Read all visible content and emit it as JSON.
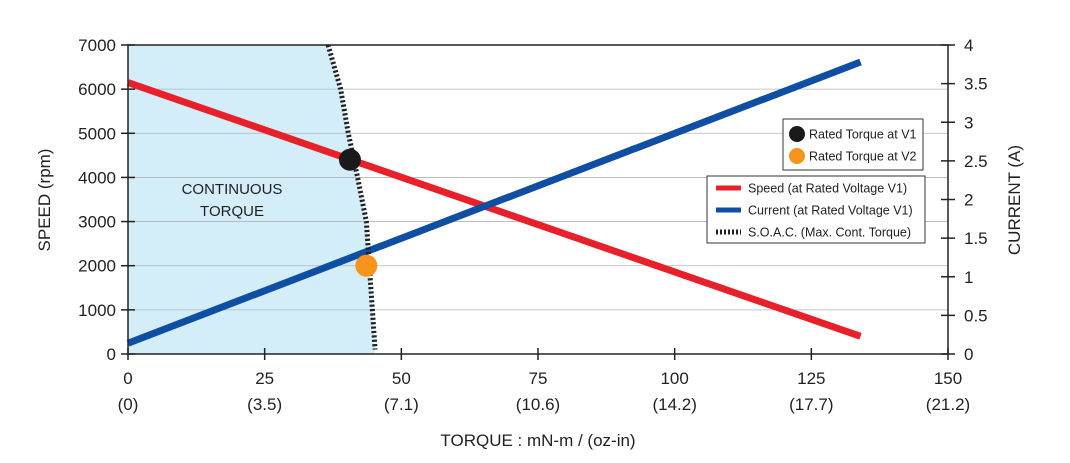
{
  "chart_data": {
    "type": "line",
    "xlabel": "TORQUE : mN-m / (oz-in)",
    "ylabel_left": "SPEED (rpm)",
    "ylabel_right": "CURRENT (A)",
    "xlim": [
      0,
      150
    ],
    "ylim_left": [
      0,
      7000
    ],
    "ylim_right": [
      0,
      4
    ],
    "x_ticks": [
      0,
      25,
      50,
      75,
      100,
      125,
      150
    ],
    "x_ticks_secondary": [
      "(0)",
      "(3.5)",
      "(7.1)",
      "(10.6)",
      "(14.2)",
      "(17.7)",
      "(21.2)"
    ],
    "y_ticks_left": [
      0,
      1000,
      2000,
      3000,
      4000,
      5000,
      6000,
      7000
    ],
    "y_ticks_right": [
      "0",
      "0.5",
      "1",
      "1.5",
      "2",
      "2.5",
      "3",
      "3.5",
      "4"
    ],
    "grid": true,
    "region_label": [
      "CONTINUOUS",
      "TORQUE"
    ],
    "series": [
      {
        "name": "Speed (at Rated Voltage V1)",
        "axis": "left",
        "color": "#e8202a",
        "x": [
          0,
          134
        ],
        "y": [
          6150,
          400
        ]
      },
      {
        "name": "Current (at Rated Voltage V1)",
        "axis": "right",
        "color": "#0f4fa3",
        "x": [
          0,
          134
        ],
        "y": [
          0.14,
          3.78
        ]
      },
      {
        "name": "S.O.A.C. (Max. Cont. Torque)",
        "axis": "left",
        "color": "#222222",
        "style": "dashed",
        "x": [
          36.6,
          38.9,
          40.3,
          42.0,
          43.6,
          45.2
        ],
        "y": [
          7000,
          6000,
          5000,
          4000,
          3000,
          100
        ]
      }
    ],
    "points": [
      {
        "name": "Rated Torque at V1",
        "color": "#1a1a1a",
        "x": 40.6,
        "y": 4400
      },
      {
        "name": "Rated Torque at V2",
        "color": "#f7941d",
        "x": 43.6,
        "y": 2000
      }
    ],
    "legend_points_placement": "top-right",
    "legend_lines_placement": "right"
  }
}
